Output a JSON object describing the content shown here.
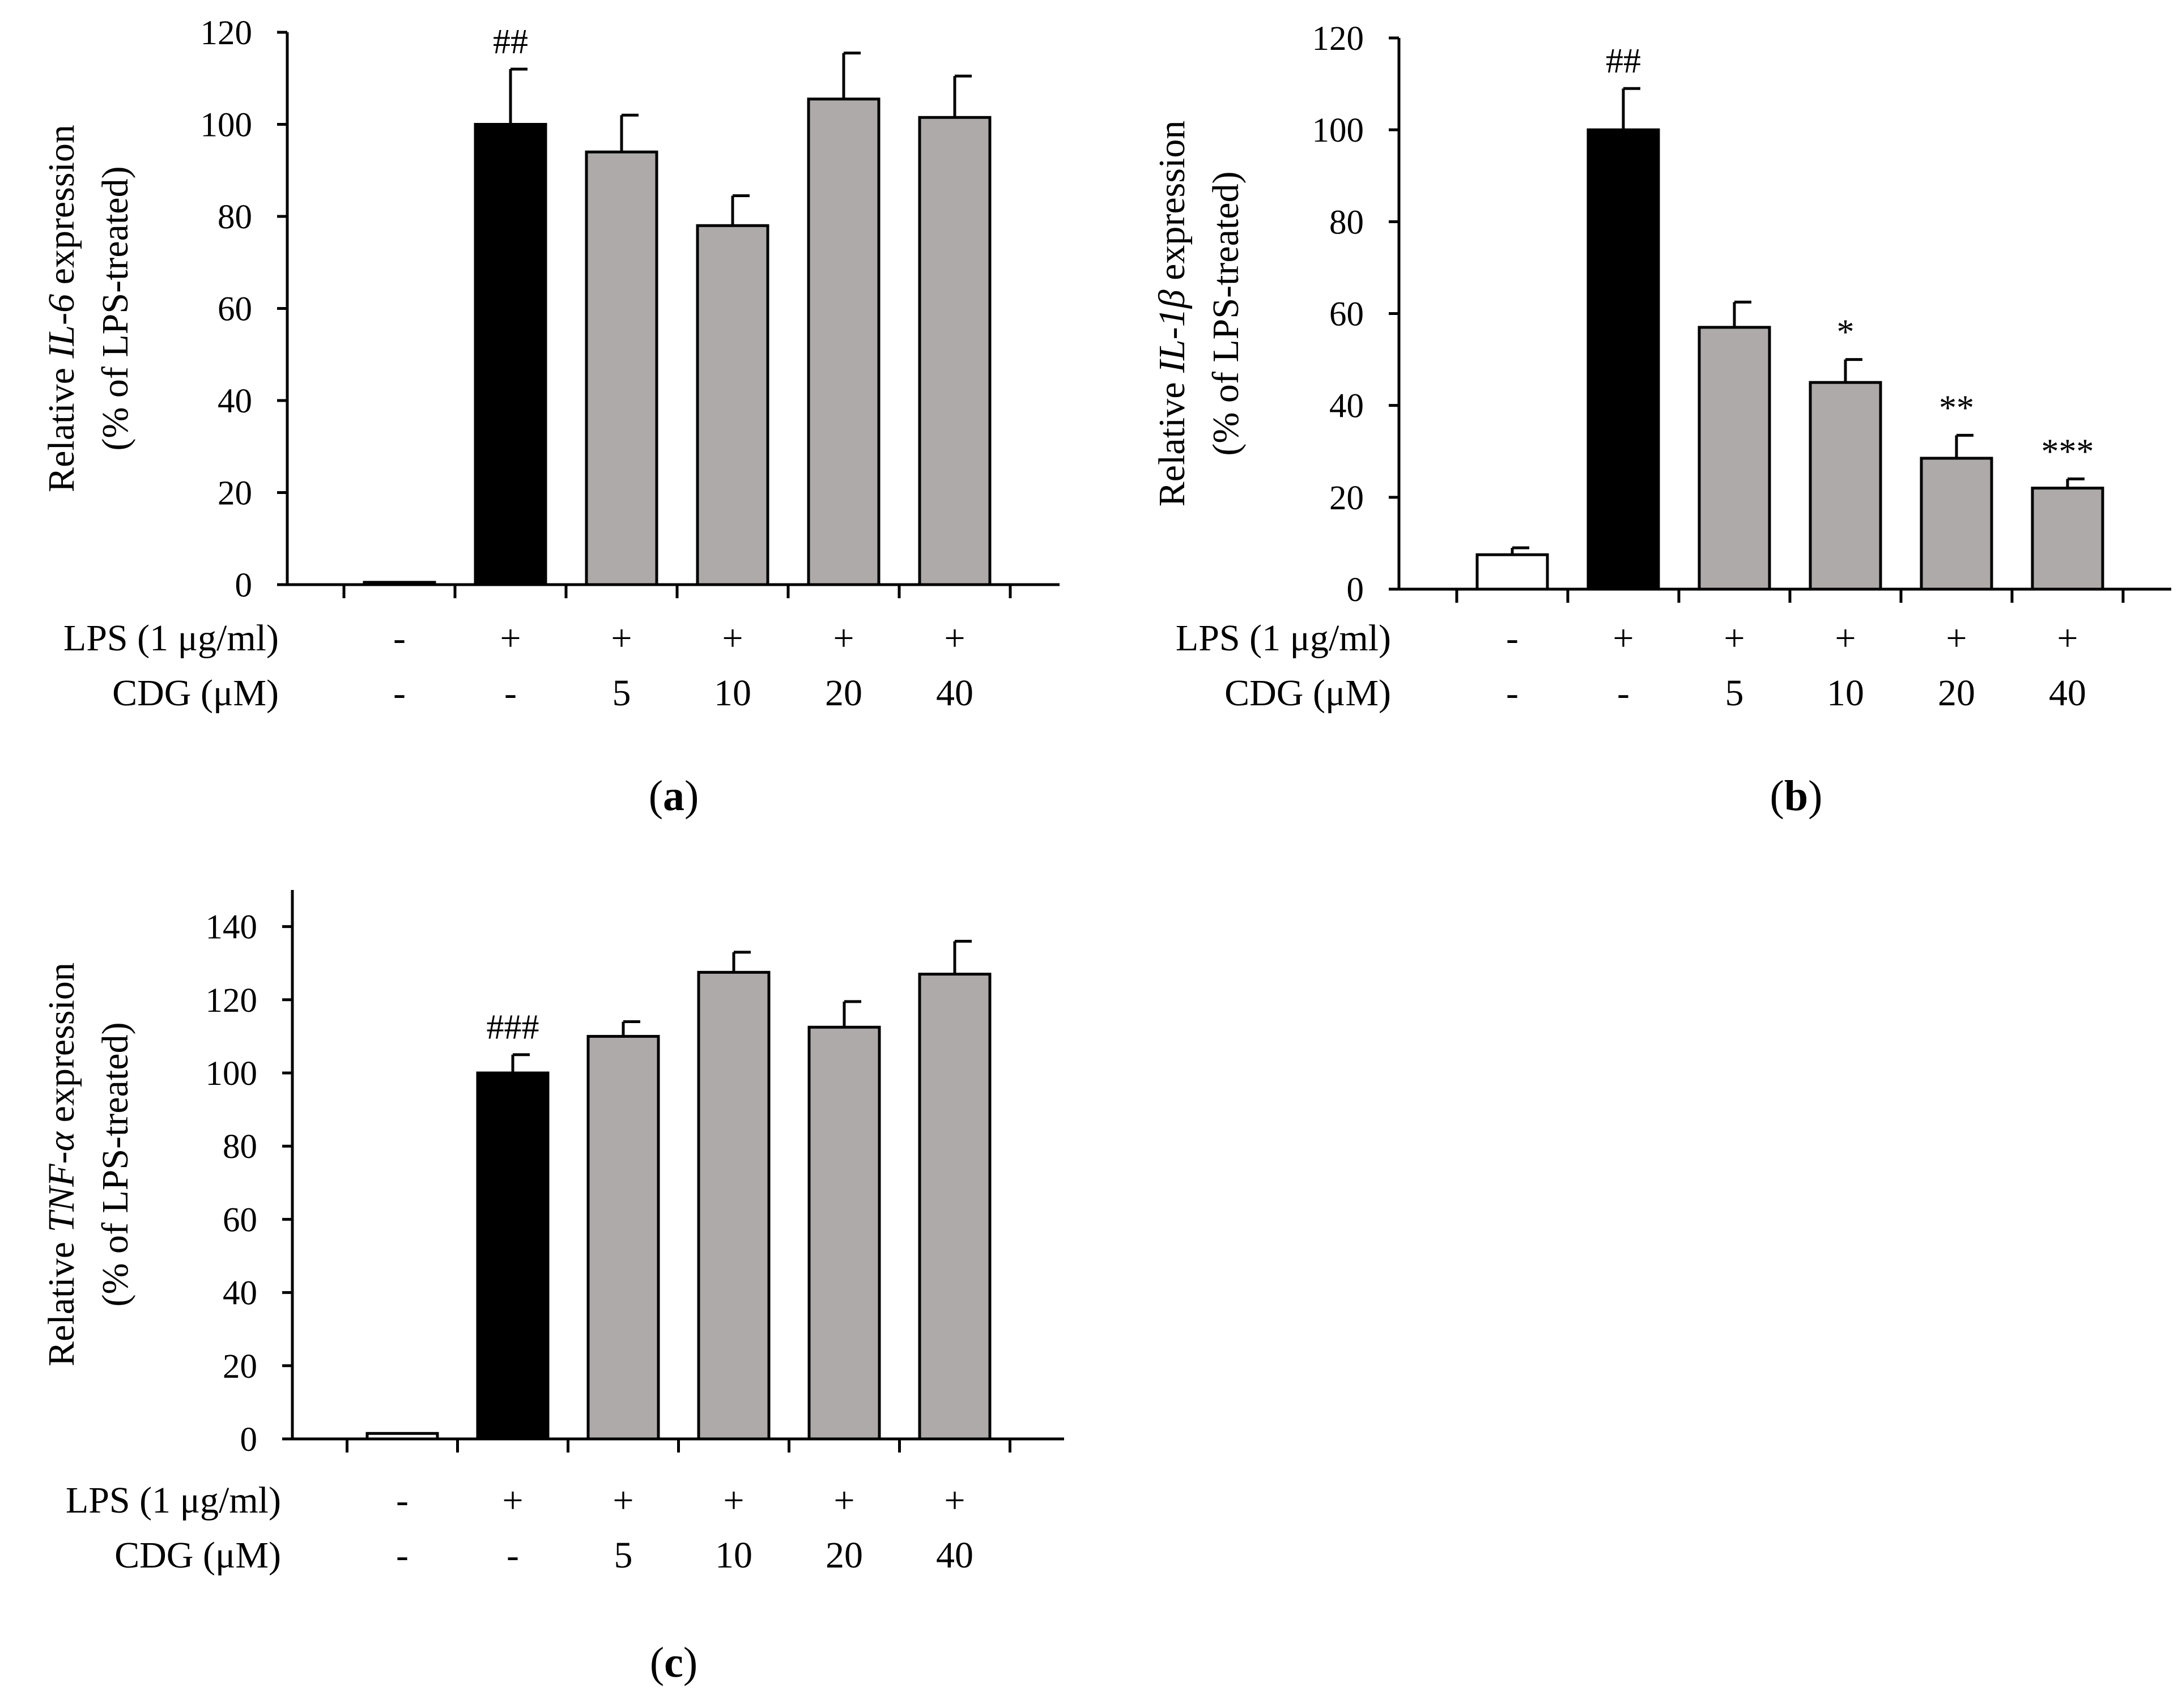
{
  "chart_data": [
    {
      "panel": "(a)",
      "panel_letter": "a",
      "type": "bar",
      "ylabel": {
        "prefix": "Relative ",
        "gene": "IL-6",
        "suffix": " expression",
        "line2": "(% of LPS-treated)"
      },
      "ylim": [
        0,
        120
      ],
      "yticks": [
        0,
        20,
        40,
        60,
        80,
        100,
        120
      ],
      "categories": [
        "control",
        "LPS",
        "LPS+CDG 5",
        "LPS+CDG 10",
        "LPS+CDG 20",
        "LPS+CDG 40"
      ],
      "values": [
        0.5,
        100,
        94,
        78,
        105.5,
        101.5
      ],
      "errors": [
        0,
        12,
        8,
        6.5,
        10,
        9
      ],
      "colors": [
        "#ffffff",
        "#000000",
        "#aeaaaa",
        "#aeaaaa",
        "#aeaaaa",
        "#aeaaaa"
      ],
      "annotations": [
        "",
        "##",
        "",
        "",
        "",
        ""
      ],
      "lps_label": "LPS  (1 μg/ml)",
      "lps": [
        "-",
        "+",
        "+",
        "+",
        "+",
        "+"
      ],
      "cdg_label": "CDG (μM)",
      "cdg": [
        "-",
        "-",
        "5",
        "10",
        "20",
        "40"
      ]
    },
    {
      "panel": "(b)",
      "panel_letter": "b",
      "type": "bar",
      "ylabel": {
        "prefix": "Relative ",
        "gene": "IL-1β",
        "suffix": " expression",
        "line2": "(% of LPS-treated)"
      },
      "ylim": [
        0,
        120
      ],
      "yticks": [
        0,
        20,
        40,
        60,
        80,
        100,
        120
      ],
      "categories": [
        "control",
        "LPS",
        "LPS+CDG 5",
        "LPS+CDG 10",
        "LPS+CDG 20",
        "LPS+CDG 40"
      ],
      "values": [
        7.5,
        100,
        57,
        45,
        28.5,
        22
      ],
      "errors": [
        1.5,
        9,
        5.5,
        5,
        5,
        2
      ],
      "colors": [
        "#ffffff",
        "#000000",
        "#aeaaaa",
        "#aeaaaa",
        "#aeaaaa",
        "#aeaaaa"
      ],
      "annotations": [
        "",
        "##",
        "",
        "*",
        "**",
        "***"
      ],
      "lps_label": "LPS  (1 μg/ml)",
      "lps": [
        "-",
        "+",
        "+",
        "+",
        "+",
        "+"
      ],
      "cdg_label": "CDG (μM)",
      "cdg": [
        "-",
        "-",
        "5",
        "10",
        "20",
        "40"
      ]
    },
    {
      "panel": "(c)",
      "panel_letter": "c",
      "type": "bar",
      "ylabel": {
        "prefix": "Relative ",
        "gene": "TNF-α",
        "suffix": " expression",
        "line2": "(% of LPS-treated)"
      },
      "ylim": [
        0,
        150
      ],
      "yticks": [
        0,
        20,
        40,
        60,
        80,
        100,
        120,
        140
      ],
      "categories": [
        "control",
        "LPS",
        "LPS+CDG 5",
        "LPS+CDG 10",
        "LPS+CDG 20",
        "LPS+CDG 40"
      ],
      "values": [
        1.5,
        100,
        110,
        127.5,
        112.5,
        127
      ],
      "errors": [
        0,
        5,
        4,
        5.5,
        7,
        9
      ],
      "colors": [
        "#ffffff",
        "#000000",
        "#aeaaaa",
        "#aeaaaa",
        "#aeaaaa",
        "#aeaaaa"
      ],
      "annotations": [
        "",
        "###",
        "",
        "",
        "",
        ""
      ],
      "lps_label": "LPS  (1 μg/ml)",
      "lps": [
        "-",
        "+",
        "+",
        "+",
        "+",
        "+"
      ],
      "cdg_label": "CDG (μM)",
      "cdg": [
        "-",
        "-",
        "5",
        "10",
        "20",
        "40"
      ]
    }
  ]
}
